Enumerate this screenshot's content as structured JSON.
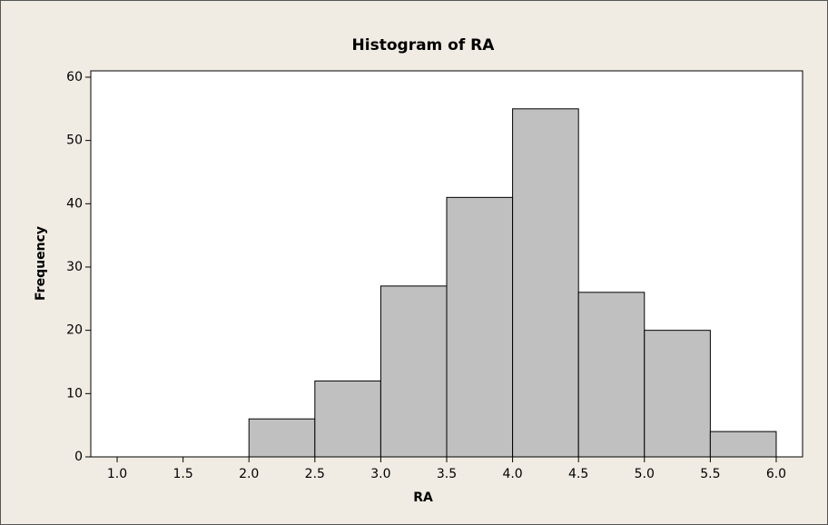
{
  "chart_data": {
    "type": "histogram",
    "title": "Histogram of RA",
    "xlabel": "RA",
    "ylabel": "Frequency",
    "bins": [
      1.0,
      1.5,
      2.0,
      2.5,
      3.0,
      3.5,
      4.0,
      4.5,
      5.0,
      5.5,
      6.0
    ],
    "values": [
      0,
      0,
      6,
      12,
      27,
      41,
      55,
      26,
      20,
      4
    ],
    "color": "#c0c0c0",
    "xlim": [
      0.8,
      6.2
    ],
    "xticks": [
      {
        "value": 1.0,
        "label": "1.0"
      },
      {
        "value": 1.5,
        "label": "1.5"
      },
      {
        "value": 2.0,
        "label": "2.0"
      },
      {
        "value": 2.5,
        "label": "2.5"
      },
      {
        "value": 3.0,
        "label": "3.0"
      },
      {
        "value": 3.5,
        "label": "3.5"
      },
      {
        "value": 4.0,
        "label": "4.0"
      },
      {
        "value": 4.5,
        "label": "4.5"
      },
      {
        "value": 5.0,
        "label": "5.0"
      },
      {
        "value": 5.5,
        "label": "5.5"
      },
      {
        "value": 6.0,
        "label": "6.0"
      }
    ],
    "ylim": [
      0,
      61
    ],
    "yticks": [
      0,
      10,
      20,
      30,
      40,
      50,
      60
    ],
    "grid": false
  }
}
